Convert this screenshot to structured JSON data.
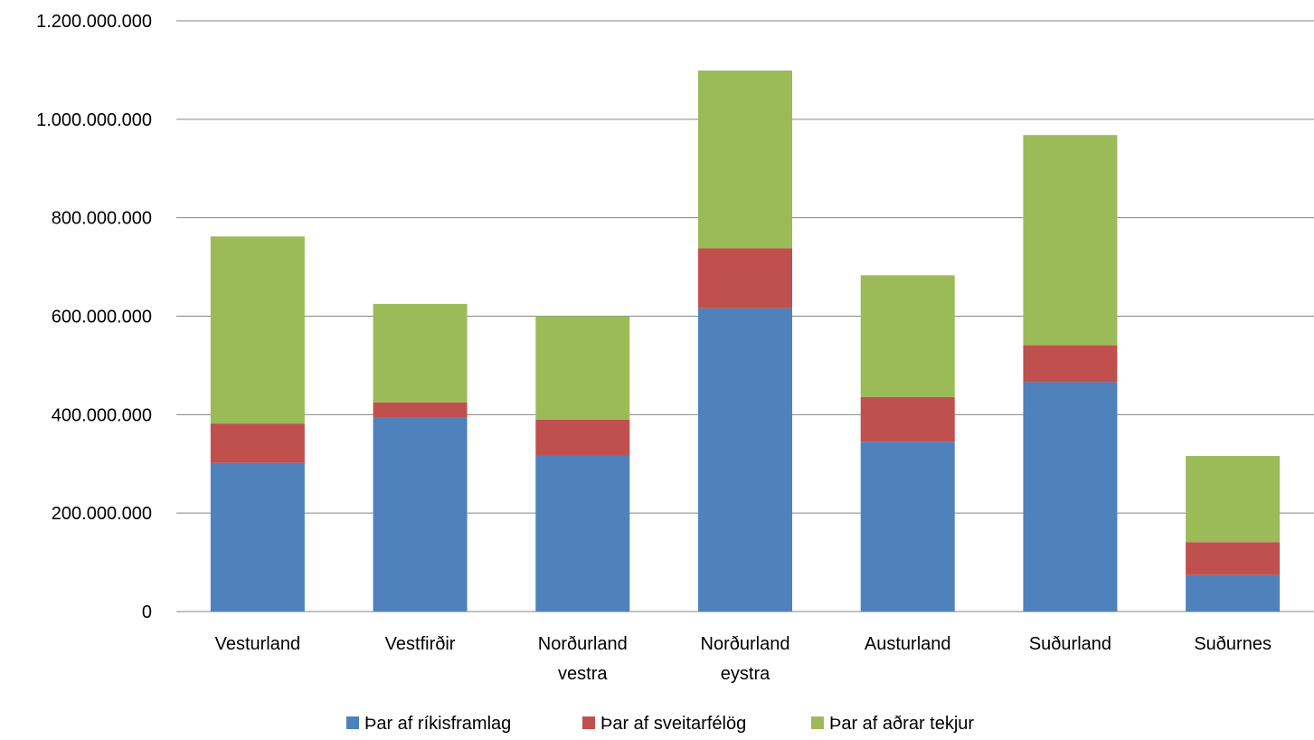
{
  "chart_data": {
    "type": "bar",
    "stacked": true,
    "categories": [
      [
        "Vesturland"
      ],
      [
        "Vestfirðir"
      ],
      [
        "Norðurland",
        "vestra"
      ],
      [
        "Norðurland",
        "eystra"
      ],
      [
        "Austurland"
      ],
      [
        "Suðurland"
      ],
      [
        "Suðurnes"
      ]
    ],
    "series": [
      {
        "name": "Þar af ríkisframlag",
        "color": "#4F81BD",
        "values": [
          302000000,
          395000000,
          317000000,
          616000000,
          345000000,
          466000000,
          74000000
        ]
      },
      {
        "name": "Þar af sveitarfélög",
        "color": "#C0504D",
        "values": [
          80000000,
          30000000,
          73000000,
          122000000,
          91000000,
          75000000,
          67000000
        ]
      },
      {
        "name": "Þar af aðrar tekjur",
        "color": "#9BBB59",
        "values": [
          380000000,
          200000000,
          210000000,
          361000000,
          247000000,
          427000000,
          175000000
        ]
      }
    ],
    "ylim": [
      0,
      1200000000
    ],
    "yticks": [
      0,
      200000000,
      400000000,
      600000000,
      800000000,
      1000000000,
      1200000000
    ],
    "ytick_labels": [
      "0",
      "200.000.000",
      "400.000.000",
      "600.000.000",
      "800.000.000",
      "1.000.000.000",
      "1.200.000.000"
    ],
    "grid": true,
    "legend_position": "bottom"
  }
}
